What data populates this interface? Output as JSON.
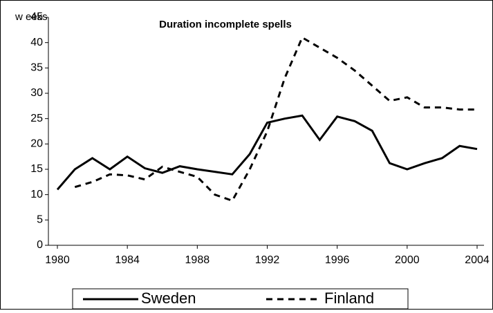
{
  "chart_data": {
    "type": "line",
    "title": "Duration incomplete spells",
    "y_label": "w eeks",
    "x": [
      1980,
      1981,
      1982,
      1983,
      1984,
      1985,
      1986,
      1987,
      1988,
      1989,
      1990,
      1991,
      1992,
      1993,
      1994,
      1995,
      1996,
      1997,
      1998,
      1999,
      2000,
      2001,
      2002,
      2003,
      2004
    ],
    "series": [
      {
        "name": "Sweden",
        "color": "#000000",
        "dash": "solid",
        "values": [
          11,
          15,
          17.2,
          15,
          17.5,
          15.2,
          14.3,
          15.6,
          15,
          14.5,
          14,
          18,
          24.2,
          25,
          25.6,
          20.8,
          25.4,
          24.5,
          22.6,
          16.2,
          15,
          16.2,
          17.2,
          19.6,
          19
        ]
      },
      {
        "name": "Finland",
        "color": "#000000",
        "dash": "dashed",
        "values": [
          null,
          11.5,
          12.5,
          14,
          13.8,
          13,
          15.5,
          14.5,
          13.5,
          10,
          8.8,
          15,
          22.5,
          33,
          41,
          39,
          37,
          34.5,
          31.5,
          28.5,
          29.2,
          27.2,
          27.2,
          26.8,
          26.8
        ]
      }
    ],
    "xlim": [
      1979.5,
      2004.5
    ],
    "xticks": [
      1980,
      1984,
      1988,
      1992,
      1996,
      2000,
      2004
    ],
    "ylim": [
      0,
      45
    ],
    "yticks": [
      0,
      5,
      10,
      15,
      20,
      25,
      30,
      35,
      40,
      45
    ],
    "legend": "bottom"
  }
}
